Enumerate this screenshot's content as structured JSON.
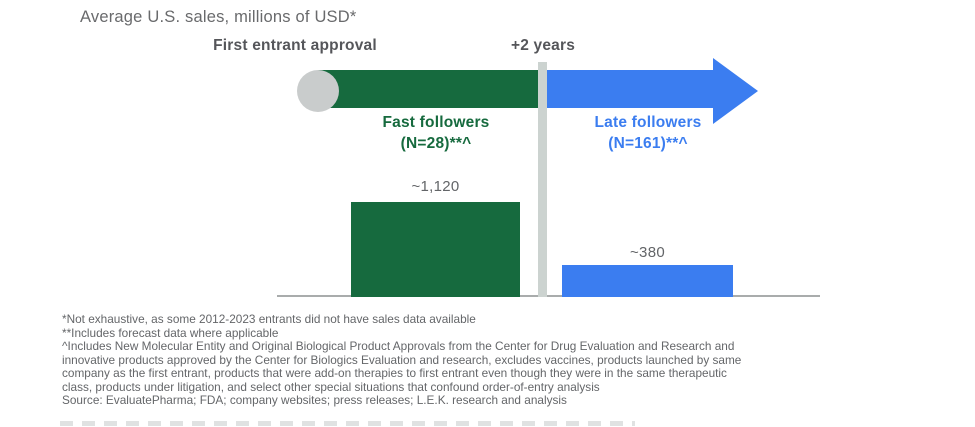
{
  "title": "Average U.S. sales, millions of USD*",
  "timeline": {
    "first_entrant_label": "First entrant approval",
    "plus_two_years_label": "+2 years"
  },
  "groups": {
    "fast": {
      "name": "Fast followers",
      "n_label": "(N=28)**^",
      "value_label": "~1,120"
    },
    "late": {
      "name": "Late followers",
      "n_label": "(N=161)**^",
      "value_label": "~380"
    }
  },
  "chart_data": {
    "type": "bar",
    "title": "Average U.S. sales, millions of USD*",
    "categories": [
      "Fast followers (N=28)**^",
      "Late followers (N=161)**^"
    ],
    "values": [
      1120,
      380
    ],
    "value_labels": [
      "~1,120",
      "~380"
    ],
    "units": "millions of USD",
    "series_colors": [
      "#166a3e",
      "#3b7df0"
    ],
    "annotations": [
      "First entrant approval",
      "+2 years"
    ],
    "ylim": [
      0,
      1200
    ],
    "grid": false,
    "legend": false
  },
  "footnotes": [
    "*Not exhaustive, as some 2012-2023 entrants did not have sales data available",
    "**Includes forecast data where applicable",
    "^Includes New Molecular Entity and Original Biological Product Approvals from the Center for Drug Evaluation and Research and",
    "innovative products approved by the Center for Biologics Evaluation and research, excludes vaccines, products launched by same",
    "company as the first entrant, products that were add-on therapies to first entrant even though they were in the same therapeutic",
    "class, products under litigation, and select other special situations that confound order-of-entry analysis",
    "Source: EvaluatePharma; FDA; company websites; press releases; L.E.K. research and analysis"
  ],
  "colors": {
    "green": "#166a3e",
    "blue": "#3b7df0",
    "circle_gray": "#c9cccc",
    "divider_gray": "#ccd3d0",
    "axis_gray": "#a9acac",
    "title_gray": "#696a6c",
    "label_dark_gray": "#55565a",
    "footnote_gray": "#646669"
  }
}
